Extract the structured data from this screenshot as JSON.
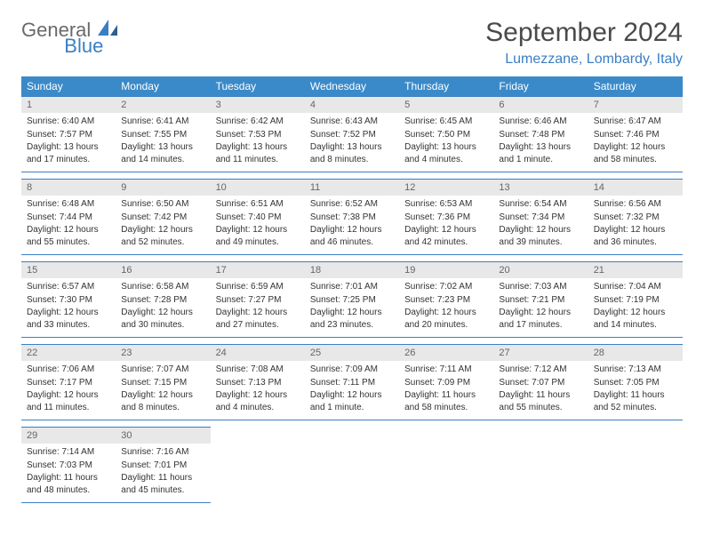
{
  "logo": {
    "text1": "General",
    "text2": "Blue"
  },
  "title": "September 2024",
  "location": "Lumezzane, Lombardy, Italy",
  "colors": {
    "header_bg": "#3a8ac9",
    "header_text": "#ffffff",
    "accent": "#3a7fc4",
    "daynum_bg": "#e8e8e8",
    "daynum_text": "#666666",
    "body_text": "#333333",
    "logo_gray": "#6a6a6a"
  },
  "weekdays": [
    "Sunday",
    "Monday",
    "Tuesday",
    "Wednesday",
    "Thursday",
    "Friday",
    "Saturday"
  ],
  "labels": {
    "sunrise": "Sunrise:",
    "sunset": "Sunset:",
    "daylight": "Daylight:"
  },
  "days": [
    {
      "n": "1",
      "sunrise": "6:40 AM",
      "sunset": "7:57 PM",
      "daylight": "13 hours and 17 minutes."
    },
    {
      "n": "2",
      "sunrise": "6:41 AM",
      "sunset": "7:55 PM",
      "daylight": "13 hours and 14 minutes."
    },
    {
      "n": "3",
      "sunrise": "6:42 AM",
      "sunset": "7:53 PM",
      "daylight": "13 hours and 11 minutes."
    },
    {
      "n": "4",
      "sunrise": "6:43 AM",
      "sunset": "7:52 PM",
      "daylight": "13 hours and 8 minutes."
    },
    {
      "n": "5",
      "sunrise": "6:45 AM",
      "sunset": "7:50 PM",
      "daylight": "13 hours and 4 minutes."
    },
    {
      "n": "6",
      "sunrise": "6:46 AM",
      "sunset": "7:48 PM",
      "daylight": "13 hours and 1 minute."
    },
    {
      "n": "7",
      "sunrise": "6:47 AM",
      "sunset": "7:46 PM",
      "daylight": "12 hours and 58 minutes."
    },
    {
      "n": "8",
      "sunrise": "6:48 AM",
      "sunset": "7:44 PM",
      "daylight": "12 hours and 55 minutes."
    },
    {
      "n": "9",
      "sunrise": "6:50 AM",
      "sunset": "7:42 PM",
      "daylight": "12 hours and 52 minutes."
    },
    {
      "n": "10",
      "sunrise": "6:51 AM",
      "sunset": "7:40 PM",
      "daylight": "12 hours and 49 minutes."
    },
    {
      "n": "11",
      "sunrise": "6:52 AM",
      "sunset": "7:38 PM",
      "daylight": "12 hours and 46 minutes."
    },
    {
      "n": "12",
      "sunrise": "6:53 AM",
      "sunset": "7:36 PM",
      "daylight": "12 hours and 42 minutes."
    },
    {
      "n": "13",
      "sunrise": "6:54 AM",
      "sunset": "7:34 PM",
      "daylight": "12 hours and 39 minutes."
    },
    {
      "n": "14",
      "sunrise": "6:56 AM",
      "sunset": "7:32 PM",
      "daylight": "12 hours and 36 minutes."
    },
    {
      "n": "15",
      "sunrise": "6:57 AM",
      "sunset": "7:30 PM",
      "daylight": "12 hours and 33 minutes."
    },
    {
      "n": "16",
      "sunrise": "6:58 AM",
      "sunset": "7:28 PM",
      "daylight": "12 hours and 30 minutes."
    },
    {
      "n": "17",
      "sunrise": "6:59 AM",
      "sunset": "7:27 PM",
      "daylight": "12 hours and 27 minutes."
    },
    {
      "n": "18",
      "sunrise": "7:01 AM",
      "sunset": "7:25 PM",
      "daylight": "12 hours and 23 minutes."
    },
    {
      "n": "19",
      "sunrise": "7:02 AM",
      "sunset": "7:23 PM",
      "daylight": "12 hours and 20 minutes."
    },
    {
      "n": "20",
      "sunrise": "7:03 AM",
      "sunset": "7:21 PM",
      "daylight": "12 hours and 17 minutes."
    },
    {
      "n": "21",
      "sunrise": "7:04 AM",
      "sunset": "7:19 PM",
      "daylight": "12 hours and 14 minutes."
    },
    {
      "n": "22",
      "sunrise": "7:06 AM",
      "sunset": "7:17 PM",
      "daylight": "12 hours and 11 minutes."
    },
    {
      "n": "23",
      "sunrise": "7:07 AM",
      "sunset": "7:15 PM",
      "daylight": "12 hours and 8 minutes."
    },
    {
      "n": "24",
      "sunrise": "7:08 AM",
      "sunset": "7:13 PM",
      "daylight": "12 hours and 4 minutes."
    },
    {
      "n": "25",
      "sunrise": "7:09 AM",
      "sunset": "7:11 PM",
      "daylight": "12 hours and 1 minute."
    },
    {
      "n": "26",
      "sunrise": "7:11 AM",
      "sunset": "7:09 PM",
      "daylight": "11 hours and 58 minutes."
    },
    {
      "n": "27",
      "sunrise": "7:12 AM",
      "sunset": "7:07 PM",
      "daylight": "11 hours and 55 minutes."
    },
    {
      "n": "28",
      "sunrise": "7:13 AM",
      "sunset": "7:05 PM",
      "daylight": "11 hours and 52 minutes."
    },
    {
      "n": "29",
      "sunrise": "7:14 AM",
      "sunset": "7:03 PM",
      "daylight": "11 hours and 48 minutes."
    },
    {
      "n": "30",
      "sunrise": "7:16 AM",
      "sunset": "7:01 PM",
      "daylight": "11 hours and 45 minutes."
    }
  ],
  "grid": {
    "start_offset": 0,
    "total_cells": 35
  }
}
